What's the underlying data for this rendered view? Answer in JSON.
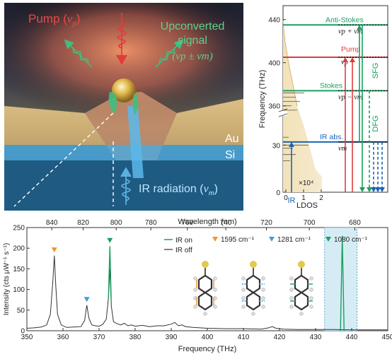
{
  "panel_a": {
    "pump_label": "Pump (",
    "pump_nu": "ν",
    "pump_sub": "p",
    "up_line1": "Upconverted",
    "up_line2": "signal",
    "up_formula": "(νp ± νm)",
    "au_label": "Au",
    "si_label": "Si",
    "ir_label": "IR radiation (",
    "ir_nu": "ν",
    "ir_sub": "m",
    "colors": {
      "pump": "#e03c3c",
      "signal": "#3fbf7f",
      "ir": "#5ab0e0"
    }
  },
  "panel_b": {
    "ylabel": "Frequency (THz)",
    "xlabel": "LDOS",
    "x_multiplier": "×10⁴",
    "yticks": [
      "440",
      "400",
      "360",
      "30",
      "0"
    ],
    "xticks": [
      "0",
      "1",
      "2"
    ],
    "levels": {
      "anti_stokes": {
        "label": "Anti-Stokes",
        "formula": "νp + νm",
        "freq": 435
      },
      "pump": {
        "label": "Pump",
        "formula": "νp",
        "freq": 405
      },
      "stokes": {
        "label": "Stokes",
        "formula": "νp − νm",
        "freq": 374
      },
      "ir": {
        "label": "IR abs.",
        "formula": "νm",
        "freq": 32
      }
    },
    "process_labels": {
      "sfg": "SFG",
      "dfg": "DFG",
      "ir": "IR"
    },
    "colors": {
      "anti_stokes": "#1aa060",
      "pump": "#e03c3c",
      "stokes": "#1aa060",
      "ir": "#1a63b5"
    }
  },
  "panel_c": {
    "top_axis_label": "Wavelength (nm)",
    "top_ticks": [
      "840",
      "820",
      "800",
      "780",
      "760",
      "740",
      "720",
      "700",
      "680"
    ],
    "legend": {
      "ir_on": "IR on",
      "ir_off": "IR off"
    },
    "modes": [
      {
        "label": "1595 cm⁻¹",
        "color": "#f0962a"
      },
      {
        "label": "1281 cm⁻¹",
        "color": "#3a9fd8"
      },
      {
        "label": "1080 cm⁻¹",
        "color": "#1aa060"
      }
    ]
  },
  "chart_data": {
    "type": "line",
    "xlabel": "Frequency (THz)",
    "ylabel": "Intensity (cts μW⁻¹ s⁻¹)",
    "xlim": [
      350,
      450
    ],
    "ylim": [
      0,
      250
    ],
    "xticks": [
      350,
      360,
      370,
      380,
      390,
      400,
      410,
      420,
      430,
      440,
      450
    ],
    "yticks": [
      0,
      50,
      100,
      150,
      200,
      250
    ],
    "shaded_region": [
      432.5,
      441.5
    ],
    "series": [
      {
        "name": "IR off",
        "color": "#333333",
        "x": [
          350,
          352,
          354,
          355.5,
          356.5,
          357.2,
          357.6,
          358,
          358.5,
          359.5,
          361,
          363,
          365,
          366,
          366.6,
          367.2,
          368,
          369,
          370,
          371,
          372,
          372.6,
          373,
          373.4,
          374,
          375,
          376,
          377,
          378,
          379,
          380,
          382,
          384,
          386,
          388,
          390,
          391,
          392,
          393,
          394,
          396,
          398,
          400,
          405,
          410,
          415,
          417,
          418,
          419,
          421,
          425,
          430,
          435,
          440,
          445,
          450
        ],
        "y": [
          6,
          7,
          9,
          14,
          40,
          120,
          182,
          110,
          40,
          14,
          8,
          9,
          10,
          25,
          62,
          30,
          14,
          12,
          11,
          15,
          28,
          80,
          150,
          60,
          22,
          17,
          14,
          18,
          12,
          14,
          11,
          13,
          10,
          12,
          12,
          16,
          20,
          12,
          14,
          10,
          8,
          7,
          6,
          5,
          5,
          4,
          7,
          10,
          6,
          4,
          3,
          3,
          3,
          2,
          2,
          2
        ]
      },
      {
        "name": "IR on",
        "color": "#1aa060",
        "x": [
          372.6,
          373,
          373.4,
          436.9,
          437.4,
          437.9
        ],
        "y": [
          80,
          205,
          60,
          0,
          230,
          0
        ]
      }
    ]
  }
}
